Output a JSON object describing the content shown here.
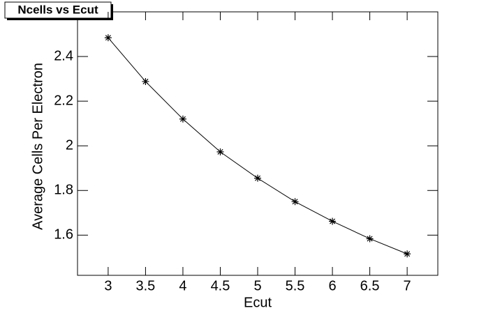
{
  "chart_data": {
    "type": "scatter",
    "title": "Ncells vs Ecut",
    "x_label": "Ecut",
    "y_label": "Average Cells Per Electron",
    "x": [
      3,
      3.5,
      4,
      4.5,
      5,
      5.5,
      6,
      6.5,
      7
    ],
    "series": [
      {
        "color": "#000000",
        "values": [
          2.484,
          2.288,
          2.12,
          1.973,
          1.855,
          1.75,
          1.662,
          1.584,
          1.516
        ]
      }
    ],
    "xlim": [
      2.59,
      7.41
    ],
    "ylim": [
      1.42,
      2.6
    ],
    "xticks": [
      3,
      3.5,
      4,
      4.5,
      5,
      5.5,
      6,
      6.5,
      7
    ],
    "yticks": [
      1.6,
      1.8,
      2,
      2.2,
      2.4
    ]
  }
}
